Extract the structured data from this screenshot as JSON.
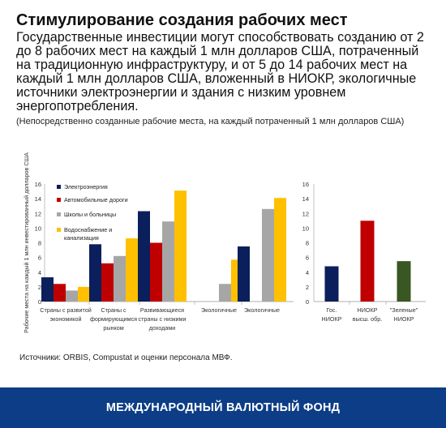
{
  "header": {
    "title": "Стимулирование создания рабочих мест",
    "lede": "Государственные инвестиции могут способствовать созданию от 2 до 8 рабочих мест на каждый 1 млн долларов США, потраченный на традиционную инфраструктуру, и от 5 до 14 рабочих мест на каждый 1 млн долларов США, вложенный в НИОКР, экологичные источники электроэнергии и здания с низким уровнем энергопотребления.",
    "note": "(Непосредственно созданные рабочие места, на каждый потраченный 1 млн долларов США)"
  },
  "source": "Источники: ORBIS, Compustat и оценки персонала МВФ.",
  "footer": {
    "org": "МЕЖДУНАРОДНЫЙ ВАЛЮТНЫЙ ФОНД"
  },
  "colors": {
    "footer_bg": "#0c3d86",
    "navy": "#0a1f5c",
    "red": "#c00000",
    "gray": "#a6a6a6",
    "yellow": "#ffc000",
    "green": "#385723"
  },
  "chart_data": [
    {
      "type": "bar",
      "ylabel": "Рабочие места на каждый 1 млн инвестированный долларов США",
      "ylim": [
        0,
        16
      ],
      "yticks": [
        0,
        2,
        4,
        6,
        8,
        10,
        12,
        14,
        16
      ],
      "legend_position": "top-left",
      "categories": [
        [
          "Страны с развитой",
          "экономикой"
        ],
        [
          "Страны с",
          "формирующимся",
          "рынком"
        ],
        [
          "Развивающиеся",
          "страны с низкими",
          "доходами"
        ],
        [
          "Экологичные"
        ],
        [
          "Экологичные"
        ]
      ],
      "series": [
        {
          "name": "Электроэнергия",
          "color": "#0a1f5c",
          "values": [
            3.3,
            7.8,
            12.3,
            null,
            7.5
          ]
        },
        {
          "name": "Автомобильные дороги",
          "color": "#c00000",
          "values": [
            2.4,
            5.2,
            8.0,
            null,
            null
          ]
        },
        {
          "name": "Школы и больницы",
          "color": "#a6a6a6",
          "values": [
            1.5,
            6.2,
            10.9,
            2.4,
            12.6
          ]
        },
        {
          "name": "Водоснабжение и канализация",
          "color": "#ffc000",
          "values": [
            2.0,
            8.6,
            15.1,
            5.7,
            14.1
          ]
        }
      ]
    },
    {
      "type": "bar",
      "ylim": [
        0,
        16
      ],
      "yticks": [
        0,
        2,
        4,
        6,
        8,
        10,
        12,
        14,
        16
      ],
      "categories": [
        [
          "Гос.",
          "НИОКР"
        ],
        [
          "НИОКР",
          "высш. обр."
        ],
        [
          "\"Зеленые\"",
          "НИОКР"
        ]
      ],
      "values": [
        4.8,
        11.0,
        5.5
      ],
      "colors": [
        "#0a1f5c",
        "#c00000",
        "#385723"
      ]
    }
  ]
}
